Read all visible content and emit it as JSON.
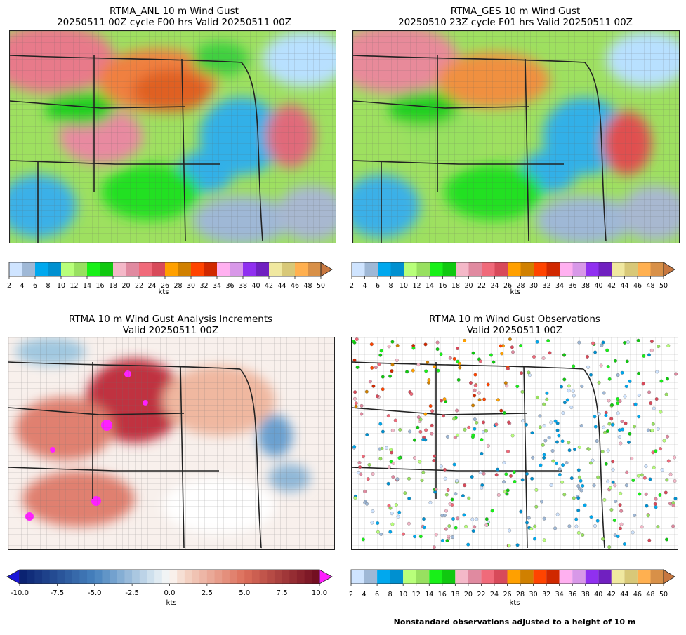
{
  "panels": {
    "anl": {
      "title_line1": "RTMA_ANL 10 m Wind Gust",
      "title_line2": "20250511 00Z cycle F00 hrs Valid 20250511 00Z"
    },
    "ges": {
      "title_line1": "RTMA_GES 10 m Wind Gust",
      "title_line2": "20250510 23Z cycle F01 hrs Valid 20250511 00Z"
    },
    "inc": {
      "title_line1": "RTMA 10 m Wind Gust Analysis Increments",
      "title_line2": "Valid 20250511 00Z"
    },
    "obs": {
      "title_line1": "RTMA 10 m Wind Gust Observations",
      "title_line2": "Valid 20250511 00Z"
    }
  },
  "colorbar_gust": {
    "units": "kts",
    "ticks": [
      "2",
      "4",
      "6",
      "8",
      "10",
      "12",
      "14",
      "16",
      "18",
      "20",
      "22",
      "24",
      "26",
      "28",
      "30",
      "32",
      "34",
      "36",
      "38",
      "40",
      "42",
      "44",
      "46",
      "48",
      "50"
    ],
    "colors": [
      "#cfe4ff",
      "#9fb8d6",
      "#00a8ee",
      "#0090d0",
      "#b8ff7a",
      "#98e060",
      "#18f018",
      "#10c810",
      "#f4b8c8",
      "#e08aa0",
      "#f06a7a",
      "#d84a5a",
      "#ffa000",
      "#d08000",
      "#ff4400",
      "#d02800",
      "#ffb0f0",
      "#d898e8",
      "#9030f0",
      "#7020c0",
      "#f0e8a0",
      "#d8c878",
      "#ffb050",
      "#d89048"
    ],
    "extend_color": "#c87840"
  },
  "colorbar_inc": {
    "units": "kts",
    "ticks": [
      "-10.0",
      "-7.5",
      "-5.0",
      "-2.5",
      "0.0",
      "2.5",
      "5.0",
      "7.5",
      "10.0"
    ],
    "min_color": "#1a16d8",
    "max_color": "#ff20ff"
  },
  "footnote": "Nonstandard observations adjusted to a height of 10 m"
}
